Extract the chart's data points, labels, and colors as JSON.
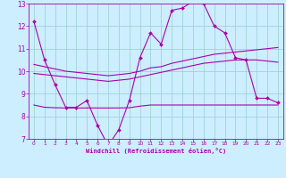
{
  "title": "",
  "xlabel": "Windchill (Refroidissement éolien,°C)",
  "ylabel": "",
  "background_color": "#cceeff",
  "line_color": "#aa00aa",
  "grid_color": "#99cccc",
  "xlim": [
    -0.5,
    23.5
  ],
  "ylim": [
    7,
    13
  ],
  "yticks": [
    7,
    8,
    9,
    10,
    11,
    12,
    13
  ],
  "xticks": [
    0,
    1,
    2,
    3,
    4,
    5,
    6,
    7,
    8,
    9,
    10,
    11,
    12,
    13,
    14,
    15,
    16,
    17,
    18,
    19,
    20,
    21,
    22,
    23
  ],
  "series": [
    {
      "x": [
        0,
        1,
        2,
        3,
        4,
        5,
        6,
        7,
        8,
        9,
        10,
        11,
        12,
        13,
        14,
        15,
        16,
        17,
        18,
        19,
        20,
        21,
        22,
        23
      ],
      "y": [
        12.2,
        10.5,
        9.4,
        8.4,
        8.4,
        8.7,
        7.6,
        6.7,
        7.4,
        8.7,
        10.6,
        11.7,
        11.2,
        12.7,
        12.8,
        13.1,
        13.0,
        12.0,
        11.7,
        10.6,
        10.5,
        8.8,
        8.8,
        8.6
      ],
      "marker": "D",
      "markersize": 2.0,
      "linewidth": 0.8,
      "has_marker": true
    },
    {
      "x": [
        0,
        1,
        2,
        3,
        4,
        5,
        6,
        7,
        8,
        9,
        10,
        11,
        12,
        13,
        14,
        15,
        16,
        17,
        18,
        19,
        20,
        21,
        22,
        23
      ],
      "y": [
        10.3,
        10.2,
        10.1,
        10.0,
        9.95,
        9.9,
        9.85,
        9.8,
        9.85,
        9.9,
        10.0,
        10.15,
        10.2,
        10.35,
        10.45,
        10.55,
        10.65,
        10.75,
        10.8,
        10.85,
        10.9,
        10.95,
        11.0,
        11.05
      ],
      "marker": null,
      "markersize": 0,
      "linewidth": 0.8,
      "has_marker": false
    },
    {
      "x": [
        0,
        1,
        2,
        3,
        4,
        5,
        6,
        7,
        8,
        9,
        10,
        11,
        12,
        13,
        14,
        15,
        16,
        17,
        18,
        19,
        20,
        21,
        22,
        23
      ],
      "y": [
        9.9,
        9.85,
        9.8,
        9.75,
        9.7,
        9.65,
        9.6,
        9.55,
        9.6,
        9.65,
        9.75,
        9.85,
        9.95,
        10.05,
        10.15,
        10.25,
        10.35,
        10.4,
        10.45,
        10.5,
        10.5,
        10.5,
        10.45,
        10.4
      ],
      "marker": null,
      "markersize": 0,
      "linewidth": 0.8,
      "has_marker": false
    },
    {
      "x": [
        0,
        1,
        2,
        3,
        4,
        5,
        6,
        7,
        8,
        9,
        10,
        11,
        12,
        13,
        14,
        15,
        16,
        17,
        18,
        19,
        20,
        21,
        22,
        23
      ],
      "y": [
        8.5,
        8.4,
        8.38,
        8.37,
        8.37,
        8.37,
        8.37,
        8.37,
        8.37,
        8.38,
        8.45,
        8.5,
        8.5,
        8.5,
        8.5,
        8.5,
        8.5,
        8.5,
        8.5,
        8.5,
        8.5,
        8.5,
        8.5,
        8.5
      ],
      "marker": null,
      "markersize": 0,
      "linewidth": 0.8,
      "has_marker": false
    }
  ]
}
